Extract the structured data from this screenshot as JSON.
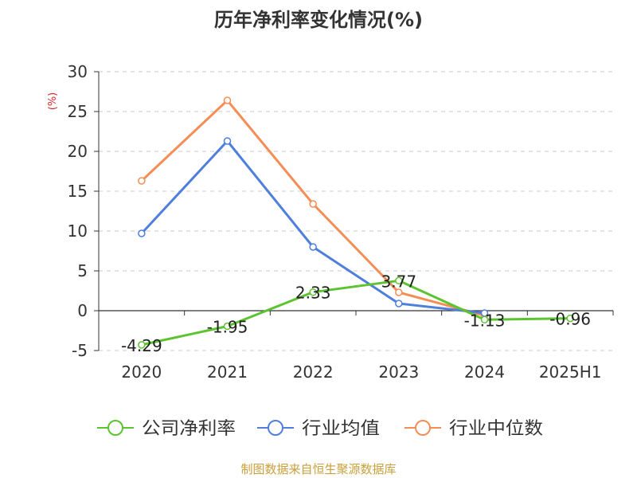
{
  "chart_data": {
    "type": "line",
    "title": "历年净利率变化情况(%)",
    "ylabel": "(%)",
    "xlabel": "",
    "categories": [
      "2020",
      "2021",
      "2022",
      "2023",
      "2024",
      "2025H1"
    ],
    "ylim": [
      -5,
      30
    ],
    "yticks": [
      "30",
      "25",
      "20",
      "15",
      "10",
      "5",
      "0",
      "-5"
    ],
    "grid": true,
    "legend_position": "bottom",
    "series": [
      {
        "name": "公司净利率",
        "color": "#5cc430",
        "values": [
          -4.29,
          -1.95,
          2.33,
          3.77,
          -1.13,
          -0.96
        ],
        "labels": [
          "-4.29",
          "-1.95",
          "2.33",
          "3.77",
          "-1.13",
          "-0.96"
        ]
      },
      {
        "name": "行业均值",
        "color": "#4e7fdc",
        "values": [
          9.7,
          21.3,
          8.0,
          0.9,
          -0.3,
          null
        ]
      },
      {
        "name": "行业中位数",
        "color": "#f58d56",
        "values": [
          16.3,
          26.4,
          13.4,
          2.3,
          -0.6,
          null
        ]
      }
    ]
  },
  "source": "制图数据来自恒生聚源数据库",
  "colors": {
    "ylabel": "#d62728",
    "grid": "#c8c8c8",
    "axis": "#333333"
  }
}
